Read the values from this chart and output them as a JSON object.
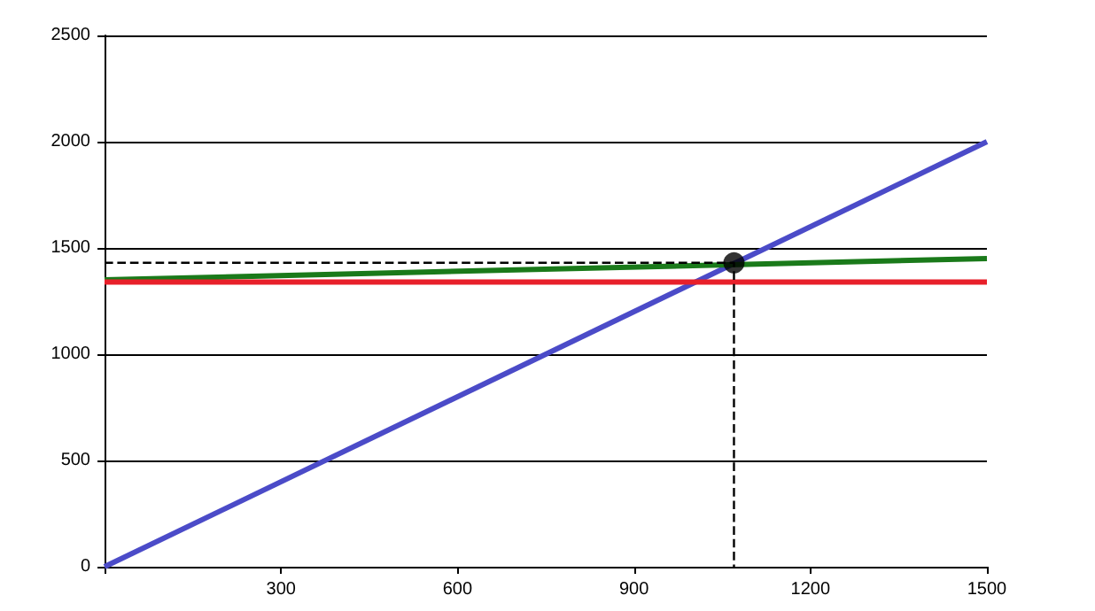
{
  "chart_data": {
    "type": "line",
    "xlim": [
      0,
      1500
    ],
    "ylim": [
      0,
      2500
    ],
    "xticks": [
      {
        "value": 0,
        "label": null
      },
      300,
      600,
      900,
      1200,
      1500
    ],
    "yticks": [
      0,
      500,
      1000,
      1500,
      2000,
      2500
    ],
    "grid": "y",
    "marker": "none",
    "series": [
      {
        "color": "#4b4bc8",
        "x": [
          0,
          1500
        ],
        "values": [
          0,
          2000
        ]
      },
      {
        "color": "#1a7a1a",
        "x": [
          0,
          1500
        ],
        "values": [
          1350,
          1450
        ]
      },
      {
        "color": "#e8202a",
        "x": [
          0,
          1500
        ],
        "values": [
          1340,
          1340
        ]
      },
      {
        "color": "#000000",
        "x": [
          0,
          1070,
          1070
        ],
        "values": [
          1430,
          1430,
          0
        ],
        "line_style": "dashed"
      },
      {
        "type": "scatter",
        "color": "#000000",
        "x": [
          1070
        ],
        "values": [
          1430
        ],
        "marker": "circle"
      }
    ]
  }
}
